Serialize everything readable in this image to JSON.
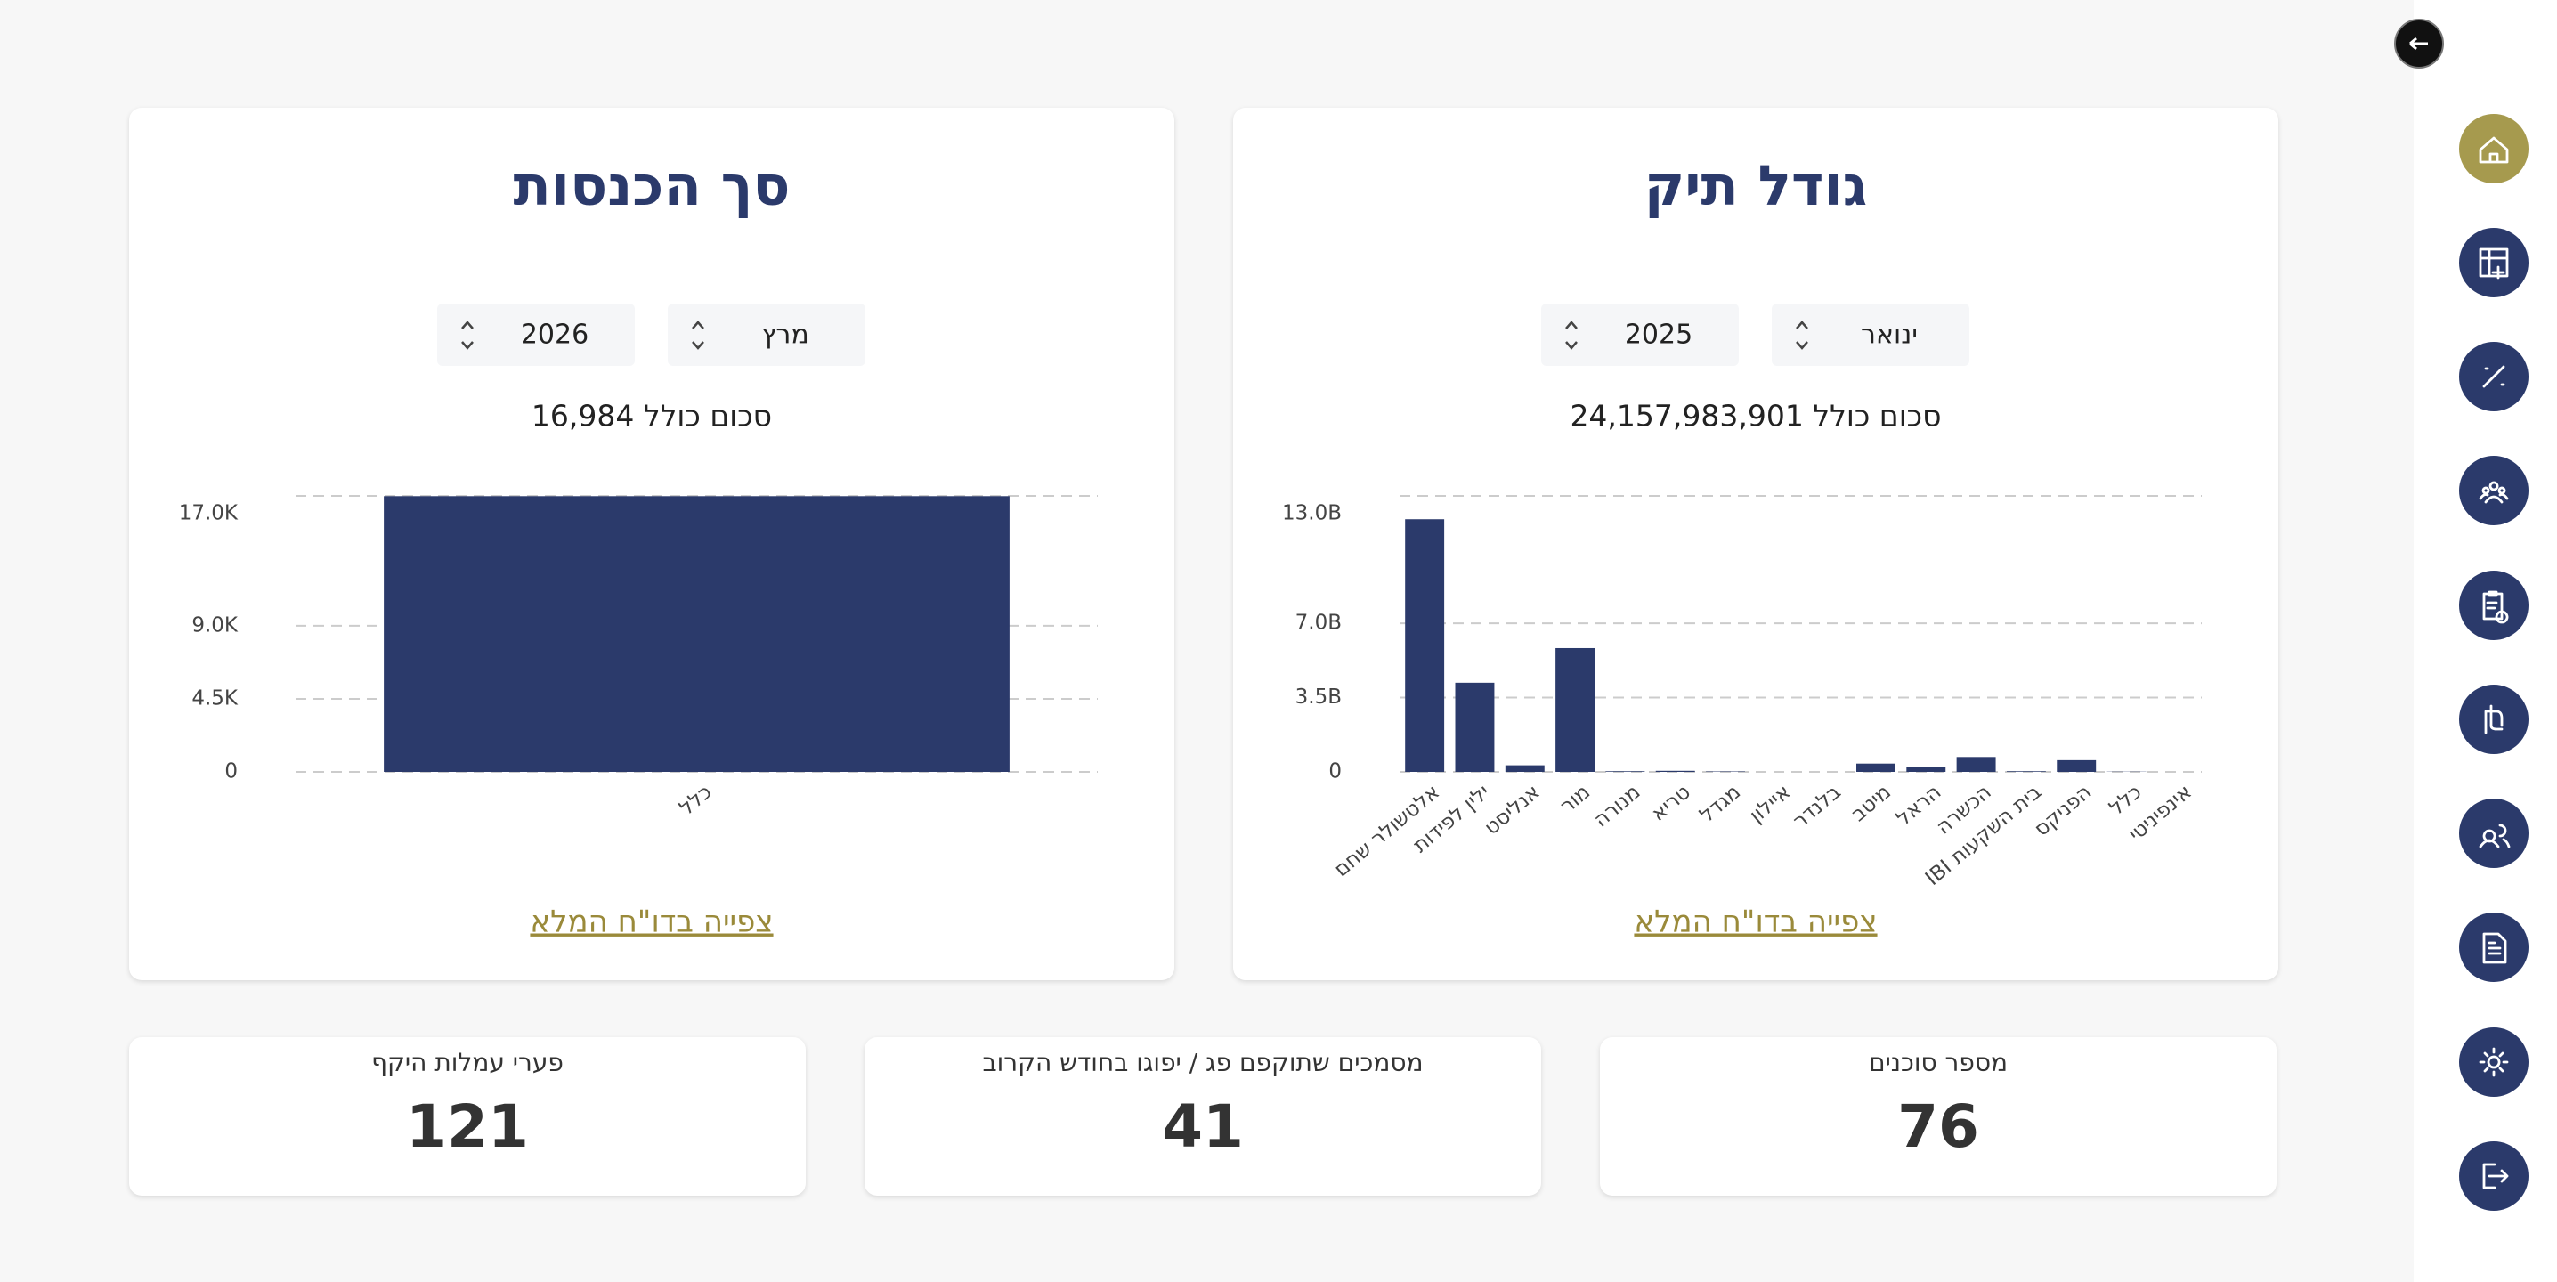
{
  "chart_data": [
    {
      "type": "bar",
      "title": "סך הכנסות",
      "month": "מרץ",
      "year": "2026",
      "total_label": "סכום כולל 16,984",
      "categories": [
        "כלל"
      ],
      "values": [
        16984
      ],
      "color": "#2b3a6b",
      "ylim": [
        0,
        17000
      ],
      "yticks": [
        0,
        {
          "value": 4500,
          "label": "4.5K"
        },
        {
          "value": 9000,
          "label": "9.0K"
        },
        {
          "value": 17000,
          "label": "17.0K"
        }
      ],
      "grid": true,
      "link": "צפייה בדו\"ח המלא"
    },
    {
      "type": "bar",
      "title": "גודל תיק",
      "month": "ינואר",
      "year": "2025",
      "total_label": "סכום כולל 24,157,983,901",
      "categories": [
        "אלטשולר שחם",
        "ילין לפידות",
        "אנליסט",
        "מור",
        "מנורה",
        "טריא",
        "מגדל",
        "איילון",
        "בלנדר",
        "מיטב",
        "הראל",
        "הכשרה",
        "IBI בית השקעות",
        "הפניקס",
        "כלל",
        "אינפיניטי"
      ],
      "values": [
        11900000000,
        4200000000,
        310000000,
        5830000000,
        30000000,
        50000000,
        20000000,
        0,
        0,
        390000000,
        230000000,
        700000000,
        30000000,
        550000000,
        10000000,
        0
      ],
      "color": "#2b3a6b",
      "ylim": [
        0,
        13000000000
      ],
      "yticks": [
        0,
        {
          "value": 3500000000,
          "label": "3.5B"
        },
        {
          "value": 7000000000,
          "label": "7.0B"
        },
        {
          "value": 13000000000,
          "label": "13.0B"
        }
      ],
      "grid": true,
      "link": "צפייה בדו\"ח המלא"
    }
  ],
  "stats": [
    {
      "label": "פערי עמלות היקף",
      "value": 121
    },
    {
      "label": "מסמכים שתוקפם פג / יפוגו בחודש הקרוב",
      "value": 41
    },
    {
      "label": "מספר סוכנים",
      "value": 76
    }
  ]
}
